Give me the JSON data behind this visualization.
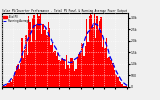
{
  "title": "Solar PV/Inverter Performance - Total PV Panel & Running Average Power Output",
  "legend_pv": "Total PV",
  "legend_avg": "Running Average",
  "background_color": "#f0f0f0",
  "plot_bg_color": "#f0f0f0",
  "bar_color": "#ff0000",
  "avg_line_color": "#0000ee",
  "grid_color": "#ffffff",
  "ylim": [
    0,
    3200
  ],
  "yticks": [
    0,
    500,
    1000,
    1500,
    2000,
    2500,
    3000
  ],
  "ytick_labels": [
    "0",
    "500",
    "1.0k",
    "1.5k",
    "2.0k",
    "2.5k",
    "3.0k"
  ],
  "values": [
    20,
    30,
    50,
    80,
    120,
    180,
    250,
    320,
    400,
    500,
    620,
    750,
    900,
    1050,
    1200,
    1350,
    1500,
    1650,
    1800,
    1950,
    2100,
    2200,
    2300,
    2400,
    2500,
    2600,
    2700,
    2750,
    2800,
    2820,
    2780,
    2720,
    2650,
    2580,
    2450,
    2350,
    2200,
    2050,
    1900,
    1750,
    1620,
    1480,
    1350,
    1250,
    1150,
    1080,
    1020,
    980,
    950,
    920,
    900,
    880,
    870,
    890,
    920,
    960,
    1020,
    1100,
    1200,
    1350,
    1500,
    1680,
    1850,
    2000,
    2150,
    2300,
    2400,
    2500,
    2580,
    2640,
    2680,
    2700,
    2650,
    2580,
    2480,
    2350,
    2200,
    2050,
    1880,
    1720,
    1550,
    1380,
    1200,
    1050,
    880,
    720,
    580,
    450,
    340,
    250,
    170,
    110,
    70,
    40,
    20,
    10
  ],
  "noise_seed": 7,
  "n_xticks": 12
}
